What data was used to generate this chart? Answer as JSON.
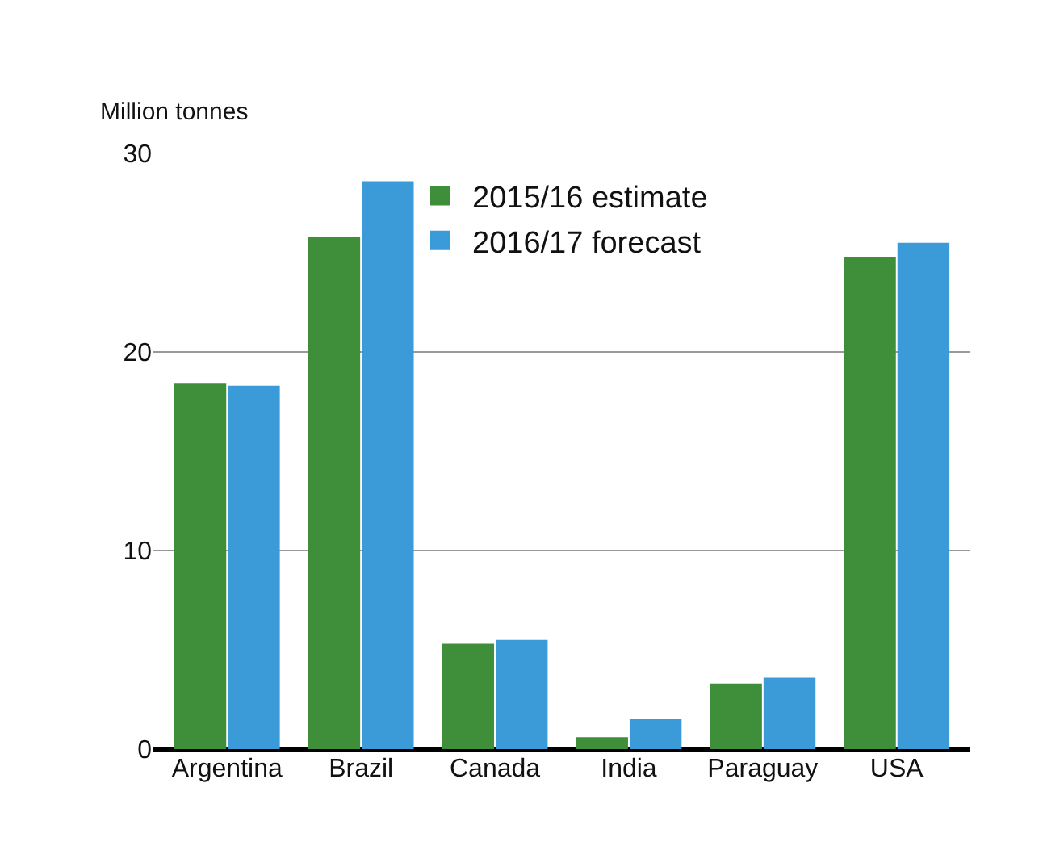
{
  "chart_data": {
    "type": "bar",
    "ylabel": "Million tonnes",
    "categories": [
      "Argentina",
      "Brazil",
      "Canada",
      "India",
      "Paraguay",
      "USA"
    ],
    "series": [
      {
        "name": "2015/16 estimate",
        "color": "#3f8f3a",
        "values": [
          18.4,
          25.8,
          5.3,
          0.6,
          3.3,
          24.8
        ]
      },
      {
        "name": "2016/17 forecast",
        "color": "#3b9bd9",
        "values": [
          18.3,
          28.6,
          5.5,
          1.5,
          3.6,
          25.5
        ]
      }
    ],
    "ylim": [
      0,
      30
    ],
    "yticks": [
      0,
      10,
      20,
      30
    ],
    "grid": "y",
    "legend": "top"
  }
}
